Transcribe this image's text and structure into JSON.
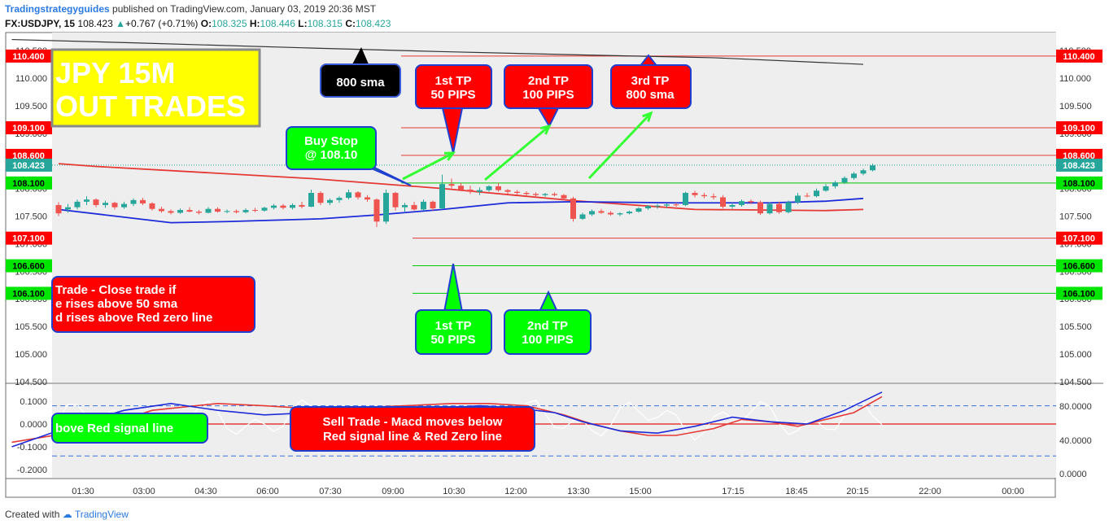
{
  "header": {
    "author": "Tradingstrategyguides",
    "published": "published on TradingView.com, January 03, 2019 20:36 MST",
    "symbol": "FX:USDJPY, 15",
    "last": "108.423",
    "change": "+0.767 (+0.71%)",
    "o_label": "O:",
    "o_value": "108.325",
    "h_label": "H:",
    "h_value": "108.446",
    "l_label": "L:",
    "l_value": "108.315",
    "c_label": "C:",
    "c_value": "108.423"
  },
  "footer": {
    "created_with": "Created with",
    "brand": "TradingView"
  },
  "colors": {
    "bull": "#26a69a",
    "bear": "#ef5350",
    "sma50": "#e53935",
    "sma200": "#1e2bd8",
    "sma800": "#333333",
    "red_level": "#e53935",
    "green_level": "#00c800"
  },
  "chart_data": [
    {
      "type": "candlestick",
      "title": "",
      "ylim": [
        104.5,
        110.6
      ],
      "y_ticks": [
        "104.500",
        "105.000",
        "105.500",
        "106.000",
        "106.500",
        "107.000",
        "107.500",
        "108.000",
        "108.500",
        "109.000",
        "109.500",
        "110.000",
        "110.500"
      ],
      "x_ticks": [
        "01:30",
        "03:00",
        "04:30",
        "06:00",
        "07:30",
        "09:00",
        "10:30",
        "12:00",
        "13:30",
        "15:00",
        "17:15",
        "18:45",
        "20:15",
        "22:00",
        "00:00"
      ],
      "price_levels": [
        {
          "label": "110.400",
          "value": 110.4,
          "color": "red"
        },
        {
          "label": "109.100",
          "value": 109.1,
          "color": "red"
        },
        {
          "label": "108.600",
          "value": 108.6,
          "color": "red"
        },
        {
          "label": "108.423",
          "value": 108.423,
          "color": "last"
        },
        {
          "label": "108.100",
          "value": 108.1,
          "color": "green"
        },
        {
          "label": "107.100",
          "value": 107.1,
          "color": "red"
        },
        {
          "label": "106.600",
          "value": 106.6,
          "color": "green"
        },
        {
          "label": "106.100",
          "value": 106.1,
          "color": "green"
        }
      ],
      "candles": [
        [
          107.7,
          107.75,
          107.5,
          107.55
        ],
        [
          107.62,
          107.72,
          107.56,
          107.66
        ],
        [
          107.66,
          107.8,
          107.62,
          107.76
        ],
        [
          107.76,
          107.86,
          107.7,
          107.8
        ],
        [
          107.8,
          107.82,
          107.66,
          107.7
        ],
        [
          107.7,
          107.78,
          107.65,
          107.74
        ],
        [
          107.74,
          107.76,
          107.62,
          107.66
        ],
        [
          107.66,
          107.76,
          107.63,
          107.72
        ],
        [
          107.72,
          107.82,
          107.68,
          107.79
        ],
        [
          107.79,
          107.83,
          107.7,
          107.73
        ],
        [
          107.73,
          107.75,
          107.6,
          107.63
        ],
        [
          107.63,
          107.67,
          107.56,
          107.59
        ],
        [
          107.59,
          107.62,
          107.53,
          107.56
        ],
        [
          107.56,
          107.64,
          107.54,
          107.61
        ],
        [
          107.61,
          107.66,
          107.57,
          107.58
        ],
        [
          107.58,
          107.61,
          107.53,
          107.56
        ],
        [
          107.56,
          107.66,
          107.55,
          107.63
        ],
        [
          107.63,
          107.66,
          107.56,
          107.58
        ],
        [
          107.58,
          107.62,
          107.55,
          107.59
        ],
        [
          107.59,
          107.62,
          107.55,
          107.57
        ],
        [
          107.57,
          107.64,
          107.55,
          107.61
        ],
        [
          107.61,
          107.65,
          107.57,
          107.6
        ],
        [
          107.6,
          107.67,
          107.58,
          107.65
        ],
        [
          107.65,
          107.72,
          107.62,
          107.69
        ],
        [
          107.69,
          107.72,
          107.62,
          107.65
        ],
        [
          107.65,
          107.73,
          107.62,
          107.7
        ],
        [
          107.7,
          107.76,
          107.64,
          107.67
        ],
        [
          107.67,
          107.98,
          107.66,
          107.92
        ],
        [
          107.92,
          107.95,
          107.7,
          107.74
        ],
        [
          107.74,
          107.82,
          107.7,
          107.79
        ],
        [
          107.79,
          107.86,
          107.74,
          107.83
        ],
        [
          107.83,
          107.98,
          107.8,
          107.93
        ],
        [
          107.93,
          107.95,
          107.8,
          107.84
        ],
        [
          107.84,
          107.88,
          107.76,
          107.8
        ],
        [
          107.8,
          107.82,
          107.3,
          107.4
        ],
        [
          107.4,
          107.98,
          107.36,
          107.92
        ],
        [
          107.92,
          107.94,
          107.6,
          107.66
        ],
        [
          107.66,
          107.74,
          107.58,
          107.7
        ],
        [
          107.7,
          107.76,
          107.6,
          107.62
        ],
        [
          107.62,
          107.8,
          107.6,
          107.76
        ],
        [
          107.76,
          107.78,
          107.6,
          107.64
        ],
        [
          107.64,
          108.25,
          107.62,
          108.08
        ],
        [
          108.08,
          108.18,
          108.0,
          108.05
        ],
        [
          108.05,
          108.1,
          107.95,
          107.98
        ],
        [
          107.98,
          108.05,
          107.9,
          107.94
        ],
        [
          107.94,
          108.02,
          107.88,
          107.97
        ],
        [
          107.97,
          108.06,
          107.94,
          108.04
        ],
        [
          108.04,
          108.1,
          107.94,
          107.97
        ],
        [
          107.97,
          107.99,
          107.9,
          107.94
        ],
        [
          107.94,
          107.97,
          107.89,
          107.92
        ],
        [
          107.92,
          107.95,
          107.87,
          107.9
        ],
        [
          107.9,
          107.93,
          107.86,
          107.88
        ],
        [
          107.88,
          107.92,
          107.85,
          107.9
        ],
        [
          107.9,
          107.93,
          107.86,
          107.88
        ],
        [
          107.88,
          107.9,
          107.78,
          107.82
        ],
        [
          107.82,
          107.85,
          107.4,
          107.45
        ],
        [
          107.45,
          107.56,
          107.43,
          107.53
        ],
        [
          107.53,
          107.62,
          107.5,
          107.59
        ],
        [
          107.59,
          107.63,
          107.54,
          107.56
        ],
        [
          107.56,
          107.59,
          107.51,
          107.53
        ],
        [
          107.53,
          107.57,
          107.5,
          107.55
        ],
        [
          107.55,
          107.6,
          107.53,
          107.58
        ],
        [
          107.58,
          107.66,
          107.56,
          107.64
        ],
        [
          107.64,
          107.7,
          107.61,
          107.68
        ],
        [
          107.68,
          107.72,
          107.63,
          107.69
        ],
        [
          107.69,
          107.73,
          107.65,
          107.71
        ],
        [
          107.71,
          107.74,
          107.67,
          107.7
        ],
        [
          107.7,
          107.94,
          107.68,
          107.92
        ],
        [
          107.92,
          107.96,
          107.84,
          107.88
        ],
        [
          107.88,
          107.92,
          107.82,
          107.86
        ],
        [
          107.86,
          107.91,
          107.8,
          107.84
        ],
        [
          107.84,
          107.88,
          107.64,
          107.67
        ],
        [
          107.67,
          107.74,
          107.63,
          107.7
        ],
        [
          107.7,
          107.8,
          107.67,
          107.77
        ],
        [
          107.77,
          107.8,
          107.72,
          107.75
        ],
        [
          107.75,
          107.78,
          107.52,
          107.55
        ],
        [
          107.55,
          107.75,
          107.53,
          107.72
        ],
        [
          107.72,
          107.76,
          107.54,
          107.57
        ],
        [
          107.57,
          107.78,
          107.55,
          107.75
        ],
        [
          107.75,
          107.92,
          107.72,
          107.87
        ],
        [
          107.87,
          107.92,
          107.84,
          107.86
        ],
        [
          107.86,
          108.0,
          107.84,
          107.96
        ],
        [
          107.96,
          108.08,
          107.94,
          108.04
        ],
        [
          108.04,
          108.14,
          108.0,
          108.11
        ],
        [
          108.11,
          108.22,
          108.08,
          108.19
        ],
        [
          108.19,
          108.3,
          108.16,
          108.27
        ],
        [
          108.27,
          108.36,
          108.24,
          108.33
        ],
        [
          108.33,
          108.45,
          108.31,
          108.42
        ]
      ],
      "sma50": [
        [
          0,
          108.45
        ],
        [
          4,
          108.4
        ],
        [
          27,
          108.18
        ],
        [
          41,
          108.0
        ],
        [
          55,
          107.78
        ],
        [
          68,
          107.62
        ],
        [
          82,
          107.6
        ],
        [
          86,
          107.62
        ]
      ],
      "sma200": [
        [
          0,
          107.62
        ],
        [
          6,
          107.5
        ],
        [
          12,
          107.38
        ],
        [
          18,
          107.4
        ],
        [
          28,
          107.45
        ],
        [
          34,
          107.52
        ],
        [
          41,
          107.62
        ],
        [
          48,
          107.74
        ],
        [
          55,
          107.76
        ],
        [
          66,
          107.74
        ],
        [
          76,
          107.74
        ],
        [
          82,
          107.77
        ],
        [
          86,
          107.82
        ]
      ],
      "sma800": [
        [
          -5,
          110.7
        ],
        [
          8,
          110.64
        ],
        [
          26,
          110.55
        ],
        [
          41,
          110.48
        ],
        [
          56,
          110.42
        ],
        [
          70,
          110.37
        ],
        [
          86,
          110.25
        ]
      ],
      "annotations": [
        {
          "kind": "yellow",
          "text1": "JPY 15M",
          "text2": "OUT TRADES"
        },
        {
          "kind": "black",
          "text1": "800 sma"
        },
        {
          "kind": "red",
          "text1": "1st TP",
          "text2": "50 PIPS"
        },
        {
          "kind": "red",
          "text1": "2nd TP",
          "text2": "100 PIPS"
        },
        {
          "kind": "red",
          "text1": "3rd TP",
          "text2": "800 sma"
        },
        {
          "kind": "green",
          "text1": "Buy Stop",
          "text2": "@ 108.10"
        },
        {
          "kind": "red",
          "text1": "Trade - Close trade if",
          "text2": "e rises above 50 sma",
          "text3": "d rises above Red zero line"
        },
        {
          "kind": "green",
          "text1": "1st TP",
          "text2": "50 PIPS"
        },
        {
          "kind": "green",
          "text1": "2nd TP",
          "text2": "100 PIPS"
        }
      ]
    },
    {
      "type": "line",
      "title": "",
      "ylim": [
        -0.22,
        0.18
      ],
      "left_ticks": [
        "0.1000",
        "0.0000",
        "-0.1000",
        "-0.2000"
      ],
      "right_ticks": [
        "80.0000",
        "40.0000",
        "0.0000"
      ],
      "series": [
        {
          "key": "macd",
          "values": [
            [
              -5,
              -0.2
            ],
            [
              0,
              -0.15
            ],
            [
              5,
              -0.05
            ],
            [
              10,
              0.05
            ],
            [
              15,
              0.08
            ],
            [
              20,
              0.07
            ],
            [
              25,
              0.05
            ],
            [
              30,
              0.04
            ],
            [
              34,
              0.06
            ],
            [
              38,
              0.06
            ],
            [
              42,
              0.06
            ],
            [
              47,
              0.07
            ],
            [
              52,
              0.06
            ],
            [
              57,
              0.05
            ],
            [
              62,
              0.02
            ],
            [
              66,
              0.0
            ],
            [
              70,
              -0.02
            ],
            [
              74,
              -0.01
            ],
            [
              78,
              0.0
            ],
            [
              82,
              0.02
            ],
            [
              86,
              0.07
            ]
          ]
        },
        {
          "key": "macd_simple",
          "values": [
            [
              -5,
              -0.1
            ],
            [
              2,
              0.0
            ],
            [
              7,
              0.06
            ],
            [
              12,
              0.09
            ],
            [
              17,
              0.06
            ],
            [
              22,
              0.04
            ],
            [
              27,
              0.05
            ],
            [
              33,
              0.06
            ],
            [
              37,
              0.06
            ],
            [
              41,
              0.07
            ],
            [
              45,
              0.08
            ],
            [
              49,
              0.07
            ],
            [
              53,
              0.05
            ],
            [
              56,
              0.01
            ],
            [
              60,
              -0.03
            ],
            [
              64,
              -0.04
            ],
            [
              68,
              -0.01
            ],
            [
              72,
              0.03
            ],
            [
              76,
              0.01
            ],
            [
              80,
              0.0
            ],
            [
              84,
              0.06
            ],
            [
              88,
              0.14
            ]
          ]
        }
      ],
      "signal": [
        [
          -5,
          -0.08
        ],
        [
          4,
          -0.02
        ],
        [
          10,
          0.06
        ],
        [
          17,
          0.09
        ],
        [
          22,
          0.08
        ],
        [
          26,
          0.07
        ],
        [
          31,
          0.07
        ],
        [
          37,
          0.08
        ],
        [
          42,
          0.09
        ],
        [
          46,
          0.09
        ],
        [
          50,
          0.08
        ],
        [
          54,
          0.04
        ],
        [
          57,
          0.0
        ],
        [
          60,
          -0.03
        ],
        [
          63,
          -0.05
        ],
        [
          66,
          -0.05
        ],
        [
          70,
          -0.02
        ],
        [
          73,
          0.02
        ],
        [
          76,
          0.01
        ],
        [
          79,
          -0.01
        ],
        [
          82,
          0.02
        ],
        [
          85,
          0.05
        ],
        [
          88,
          0.12
        ]
      ],
      "annotations": [
        {
          "kind": "green",
          "text1": "bove Red signal line"
        },
        {
          "kind": "red",
          "text1": "Sell Trade - Macd moves below",
          "text2": "Red signal line & Red Zero line"
        }
      ]
    }
  ]
}
